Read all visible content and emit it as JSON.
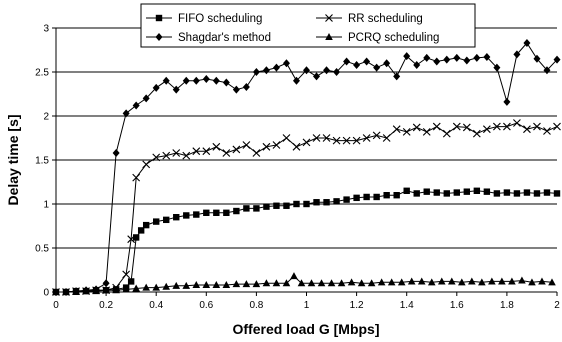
{
  "chart_data": {
    "type": "line",
    "title": "",
    "xlabel": "Offered load G [Mbps]",
    "ylabel": "Delay time [s]",
    "xlim": [
      0,
      2
    ],
    "ylim": [
      0,
      3
    ],
    "x_ticks": [
      "0",
      "0.2",
      "0.4",
      "0.6",
      "0.8",
      "1",
      "1.2",
      "1.4",
      "1.6",
      "1.8",
      "2"
    ],
    "y_ticks": [
      "0",
      "0.5",
      "1",
      "1.5",
      "2",
      "2.5",
      "3"
    ],
    "grid": "horizontal",
    "legend_position": "top",
    "series": [
      {
        "name": "FIFO scheduling",
        "marker": "square",
        "x": [
          0,
          0.04,
          0.08,
          0.12,
          0.16,
          0.2,
          0.24,
          0.28,
          0.3,
          0.32,
          0.34,
          0.36,
          0.4,
          0.44,
          0.48,
          0.52,
          0.56,
          0.6,
          0.64,
          0.68,
          0.72,
          0.76,
          0.8,
          0.84,
          0.88,
          0.92,
          0.96,
          1.0,
          1.04,
          1.08,
          1.12,
          1.16,
          1.2,
          1.24,
          1.28,
          1.32,
          1.36,
          1.4,
          1.44,
          1.48,
          1.52,
          1.56,
          1.6,
          1.64,
          1.68,
          1.72,
          1.76,
          1.8,
          1.84,
          1.88,
          1.92,
          1.96,
          2.0
        ],
        "y": [
          0.0,
          0.0,
          0.01,
          0.01,
          0.02,
          0.02,
          0.03,
          0.05,
          0.12,
          0.62,
          0.7,
          0.76,
          0.8,
          0.82,
          0.85,
          0.87,
          0.88,
          0.9,
          0.9,
          0.9,
          0.92,
          0.95,
          0.95,
          0.97,
          0.98,
          0.98,
          1.0,
          1.0,
          1.02,
          1.02,
          1.03,
          1.05,
          1.07,
          1.08,
          1.08,
          1.1,
          1.1,
          1.15,
          1.12,
          1.14,
          1.13,
          1.12,
          1.13,
          1.14,
          1.15,
          1.14,
          1.12,
          1.13,
          1.12,
          1.13,
          1.12,
          1.13,
          1.12
        ]
      },
      {
        "name": "RR scheduling",
        "marker": "x",
        "x": [
          0,
          0.04,
          0.08,
          0.12,
          0.16,
          0.2,
          0.24,
          0.28,
          0.3,
          0.32,
          0.36,
          0.4,
          0.44,
          0.48,
          0.52,
          0.56,
          0.6,
          0.64,
          0.68,
          0.72,
          0.76,
          0.8,
          0.84,
          0.88,
          0.92,
          0.96,
          1.0,
          1.04,
          1.08,
          1.12,
          1.16,
          1.2,
          1.24,
          1.28,
          1.32,
          1.36,
          1.4,
          1.44,
          1.48,
          1.52,
          1.56,
          1.6,
          1.64,
          1.68,
          1.72,
          1.76,
          1.8,
          1.84,
          1.88,
          1.92,
          1.96,
          2.0
        ],
        "y": [
          0.0,
          0.0,
          0.01,
          0.01,
          0.02,
          0.02,
          0.05,
          0.2,
          0.6,
          1.3,
          1.45,
          1.53,
          1.55,
          1.58,
          1.55,
          1.6,
          1.6,
          1.65,
          1.58,
          1.62,
          1.67,
          1.58,
          1.65,
          1.67,
          1.75,
          1.65,
          1.7,
          1.75,
          1.75,
          1.72,
          1.72,
          1.72,
          1.75,
          1.78,
          1.75,
          1.85,
          1.82,
          1.87,
          1.82,
          1.88,
          1.8,
          1.88,
          1.87,
          1.8,
          1.85,
          1.88,
          1.88,
          1.92,
          1.85,
          1.88,
          1.83,
          1.88
        ]
      },
      {
        "name": "Shagdar's method",
        "marker": "diamond",
        "x": [
          0,
          0.04,
          0.08,
          0.12,
          0.16,
          0.2,
          0.24,
          0.28,
          0.32,
          0.36,
          0.4,
          0.44,
          0.48,
          0.52,
          0.56,
          0.6,
          0.64,
          0.68,
          0.72,
          0.76,
          0.8,
          0.84,
          0.88,
          0.92,
          0.96,
          1.0,
          1.04,
          1.08,
          1.12,
          1.16,
          1.2,
          1.24,
          1.28,
          1.32,
          1.36,
          1.4,
          1.44,
          1.48,
          1.52,
          1.56,
          1.6,
          1.64,
          1.68,
          1.72,
          1.76,
          1.8,
          1.84,
          1.88,
          1.92,
          1.96,
          2.0
        ],
        "y": [
          0.0,
          0.0,
          0.01,
          0.02,
          0.03,
          0.1,
          1.58,
          2.03,
          2.12,
          2.2,
          2.32,
          2.4,
          2.3,
          2.4,
          2.4,
          2.42,
          2.4,
          2.38,
          2.3,
          2.33,
          2.5,
          2.52,
          2.55,
          2.6,
          2.4,
          2.52,
          2.45,
          2.52,
          2.5,
          2.62,
          2.58,
          2.62,
          2.55,
          2.6,
          2.45,
          2.68,
          2.58,
          2.66,
          2.62,
          2.64,
          2.66,
          2.63,
          2.66,
          2.67,
          2.55,
          2.16,
          2.7,
          2.83,
          2.65,
          2.52,
          2.64
        ]
      },
      {
        "name": "PCRQ scheduling",
        "marker": "triangle",
        "x": [
          0,
          0.04,
          0.08,
          0.12,
          0.16,
          0.2,
          0.24,
          0.28,
          0.32,
          0.36,
          0.4,
          0.44,
          0.48,
          0.52,
          0.56,
          0.6,
          0.64,
          0.68,
          0.72,
          0.76,
          0.8,
          0.84,
          0.88,
          0.92,
          0.95,
          0.98,
          1.02,
          1.06,
          1.1,
          1.14,
          1.18,
          1.22,
          1.26,
          1.3,
          1.34,
          1.38,
          1.42,
          1.46,
          1.5,
          1.54,
          1.58,
          1.62,
          1.66,
          1.7,
          1.74,
          1.78,
          1.82,
          1.86,
          1.9,
          1.94,
          1.98
        ],
        "y": [
          0.0,
          0.0,
          0.0,
          0.01,
          0.01,
          0.02,
          0.02,
          0.03,
          0.04,
          0.05,
          0.05,
          0.06,
          0.07,
          0.07,
          0.08,
          0.08,
          0.08,
          0.08,
          0.09,
          0.09,
          0.09,
          0.1,
          0.1,
          0.1,
          0.18,
          0.1,
          0.1,
          0.1,
          0.1,
          0.1,
          0.11,
          0.1,
          0.1,
          0.11,
          0.11,
          0.11,
          0.12,
          0.12,
          0.11,
          0.12,
          0.12,
          0.11,
          0.12,
          0.11,
          0.12,
          0.12,
          0.12,
          0.13,
          0.11,
          0.12,
          0.11
        ]
      }
    ]
  }
}
